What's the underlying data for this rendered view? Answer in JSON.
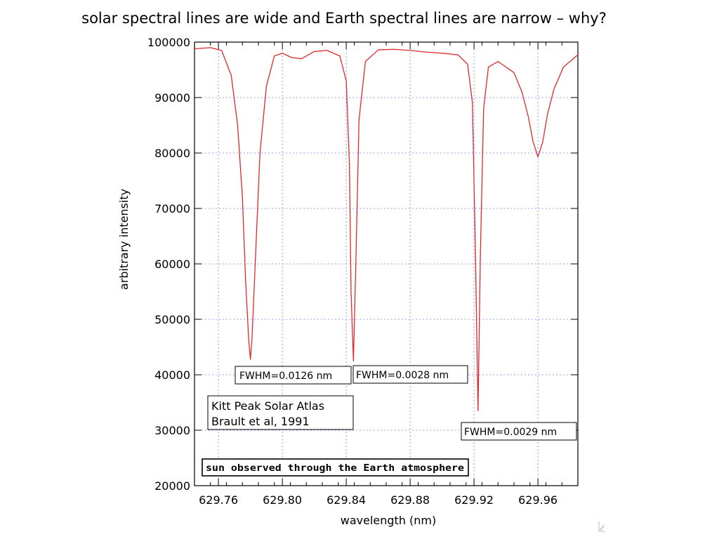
{
  "slide": {
    "title": "solar spectral lines are wide and Earth spectral lines are narrow – why?"
  },
  "chart_data": {
    "type": "line",
    "xlabel": "wavelength (nm)",
    "ylabel": "arbitrary intensity",
    "xlim": [
      629.745,
      629.985
    ],
    "ylim": [
      20000,
      100000
    ],
    "x_ticks": [
      "629.76",
      "629.80",
      "629.84",
      "629.88",
      "629.92",
      "629.96"
    ],
    "y_ticks": [
      "20000",
      "30000",
      "40000",
      "50000",
      "60000",
      "70000",
      "80000",
      "90000",
      "100000"
    ],
    "grid": true,
    "line_color": "#e0282b",
    "grid_color": "#7b7bff",
    "series": [
      {
        "x": [
          629.745,
          629.755,
          629.762,
          629.768,
          629.772,
          629.775,
          629.777,
          629.779,
          629.78,
          629.781,
          629.783,
          629.786,
          629.79,
          629.795,
          629.8,
          629.806,
          629.812,
          629.82,
          629.828,
          629.836,
          629.84,
          629.842,
          629.843,
          629.8445,
          629.846,
          629.848,
          629.852,
          629.86,
          629.87,
          629.88,
          629.89,
          629.9,
          629.91,
          629.916,
          629.919,
          629.921,
          629.9225,
          629.924,
          629.926,
          629.929,
          629.935,
          629.945,
          629.95,
          629.954,
          629.957,
          629.96,
          629.963,
          629.966,
          629.97,
          629.976,
          629.985
        ],
        "y": [
          98800,
          99000,
          98500,
          94000,
          85000,
          72000,
          57000,
          46000,
          42800,
          46500,
          60000,
          80000,
          92000,
          97500,
          98000,
          97200,
          97000,
          98300,
          98500,
          97500,
          93000,
          78000,
          55000,
          42500,
          60000,
          86000,
          96500,
          98600,
          98700,
          98500,
          98200,
          98000,
          97700,
          96000,
          89000,
          60000,
          33500,
          62000,
          88000,
          95500,
          96500,
          94500,
          91000,
          86500,
          82000,
          79300,
          82000,
          87000,
          91500,
          95500,
          97700
        ]
      }
    ],
    "annotations": [
      {
        "lines": [
          "FWHM=0.0126 nm"
        ]
      },
      {
        "lines": [
          "FWHM=0.0028 nm"
        ]
      },
      {
        "lines": [
          "FWHM=0.0029 nm"
        ]
      },
      {
        "lines": [
          "Kitt Peak Solar Atlas",
          "Brault et al, 1991"
        ]
      },
      {
        "lines": [
          "sun observed through the Earth atmosphere"
        ]
      }
    ]
  }
}
